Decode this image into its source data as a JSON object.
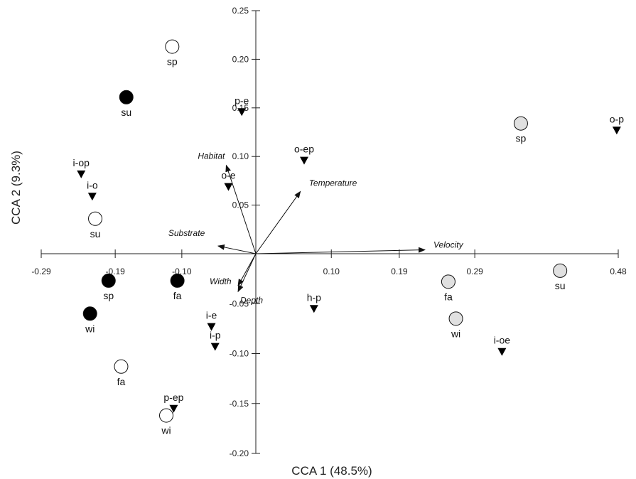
{
  "chart_data": {
    "type": "scatter",
    "title": "",
    "xlabel": "CCA 1 (48.5%)",
    "ylabel": "CCA 2 (9.3%)",
    "xlim": [
      -0.29,
      0.48
    ],
    "ylim": [
      -0.2,
      0.25
    ],
    "x_ticks": [
      "-0.29",
      "-0.19",
      "-0.10",
      "0.10",
      "0.19",
      "0.29",
      "0.48"
    ],
    "y_ticks": [
      "0.25",
      "0.20",
      "0.15",
      "0.10",
      "0.05",
      "-0.05",
      "-0.10",
      "-0.15",
      "-0.20"
    ],
    "grid": false,
    "series": [
      {
        "marker": "circle",
        "fill": "#000000",
        "points": [
          {
            "label": "su",
            "x": -0.175,
            "y": 0.161
          },
          {
            "label": "sp",
            "x": -0.199,
            "y": -0.027
          },
          {
            "label": "fa",
            "x": -0.106,
            "y": -0.027
          },
          {
            "label": "wi",
            "x": -0.224,
            "y": -0.06
          }
        ]
      },
      {
        "marker": "circle",
        "fill": "#ffffff",
        "points": [
          {
            "label": "sp",
            "x": -0.113,
            "y": 0.213
          },
          {
            "label": "su",
            "x": -0.217,
            "y": 0.036
          },
          {
            "label": "fa",
            "x": -0.182,
            "y": -0.113
          },
          {
            "label": "wi",
            "x": -0.121,
            "y": -0.162
          }
        ]
      },
      {
        "marker": "circle",
        "fill": "#e0e0e0",
        "points": [
          {
            "label": "sp",
            "x": 0.351,
            "y": 0.134
          },
          {
            "label": "fa",
            "x": 0.255,
            "y": -0.028
          },
          {
            "label": "wi",
            "x": 0.265,
            "y": -0.065
          },
          {
            "label": "su",
            "x": 0.403,
            "y": -0.017
          }
        ]
      },
      {
        "marker": "triangle-down",
        "fill": "#000000",
        "points": [
          {
            "label": "p-e",
            "x": -0.019,
            "y": 0.146
          },
          {
            "label": "o-p",
            "x": 0.478,
            "y": 0.127
          },
          {
            "label": "o-ep",
            "x": 0.064,
            "y": 0.096
          },
          {
            "label": "i-op",
            "x": -0.236,
            "y": 0.082
          },
          {
            "label": "i-o",
            "x": -0.221,
            "y": 0.059
          },
          {
            "label": "o-e",
            "x": -0.037,
            "y": 0.069
          },
          {
            "label": "h-p",
            "x": 0.077,
            "y": -0.055
          },
          {
            "label": "i-e",
            "x": -0.06,
            "y": -0.073
          },
          {
            "label": "i-p",
            "x": -0.055,
            "y": -0.093
          },
          {
            "label": "i-oe",
            "x": 0.326,
            "y": -0.098
          },
          {
            "label": "p-ep",
            "x": -0.111,
            "y": -0.155
          }
        ]
      }
    ],
    "vectors": [
      {
        "label": "Habitat",
        "x": -0.04,
        "y": 0.091
      },
      {
        "label": "Temperature",
        "x": 0.059,
        "y": 0.064
      },
      {
        "label": "Substrate",
        "x": -0.051,
        "y": 0.008
      },
      {
        "label": "Velocity",
        "x": 0.224,
        "y": 0.004
      },
      {
        "label": "Width",
        "x": -0.024,
        "y": -0.032
      },
      {
        "label": "Depth",
        "x": -0.024,
        "y": -0.038
      }
    ]
  }
}
